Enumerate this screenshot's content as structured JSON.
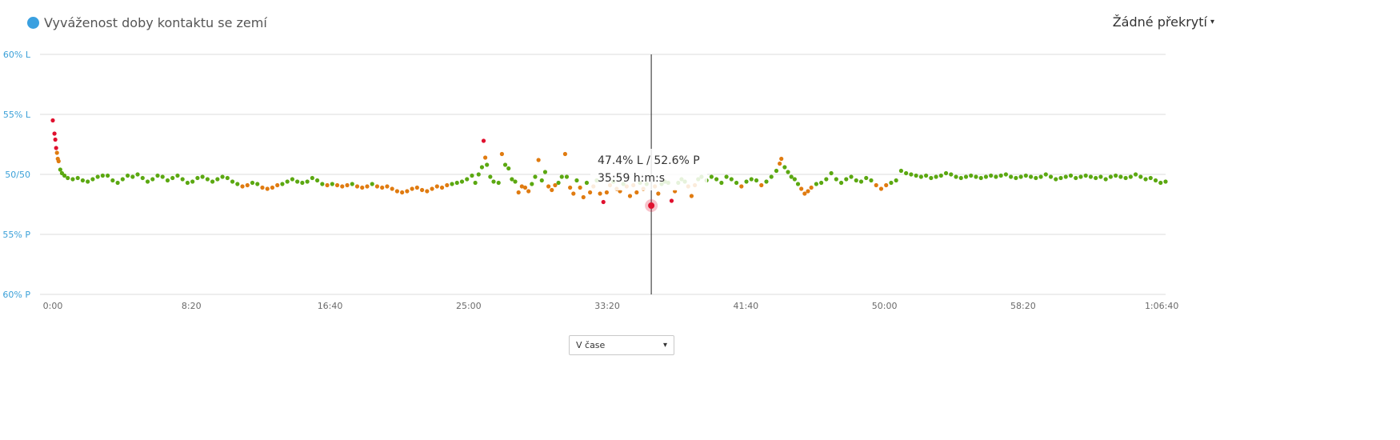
{
  "header": {
    "title": "Vyváženost doby kontaktu se zemí",
    "overlay_label": "Žádné překrytí",
    "overlay_caret": "▾"
  },
  "colors": {
    "title_dot": "#3aa0e0",
    "axis_label": "#3aa0d8",
    "good": "#5ba811",
    "warn": "#e07b10",
    "bad": "#e0102e",
    "gridline": "#dddddd",
    "cursor": "#222222"
  },
  "tooltip": {
    "balance": "47.4% L  /  52.6% P",
    "time": "35:59 h:m:s"
  },
  "footer": {
    "mode_select_value": "V čase",
    "mode_select_caret": "▾"
  },
  "chart_data": {
    "type": "scatter",
    "title": "Vyváženost doby kontaktu se zemí",
    "xlabel": "",
    "ylabel": "",
    "x_unit": "minutes",
    "xlim": [
      0,
      66.9
    ],
    "ylim": [
      40,
      60
    ],
    "y_ticks": [
      {
        "value": 60,
        "label": "60% L"
      },
      {
        "value": 55,
        "label": "55% L"
      },
      {
        "value": 50,
        "label": "50/50"
      },
      {
        "value": 45,
        "label": "55% P"
      },
      {
        "value": 40,
        "label": "60% P"
      }
    ],
    "x_ticks": [
      {
        "value": 0,
        "label": "0:00"
      },
      {
        "value": 8.333,
        "label": "8:20"
      },
      {
        "value": 16.667,
        "label": "16:40"
      },
      {
        "value": 25,
        "label": "25:00"
      },
      {
        "value": 33.333,
        "label": "33:20"
      },
      {
        "value": 41.667,
        "label": "41:40"
      },
      {
        "value": 50,
        "label": "50:00"
      },
      {
        "value": 58.333,
        "label": "58:20"
      },
      {
        "value": 66.667,
        "label": "1:06:40"
      }
    ],
    "grid": true,
    "cursor": {
      "x": 35.98,
      "y": 47.4
    },
    "color_bands": {
      "green": "49.2–50.8% L",
      "orange": "47.8–49.2% or 50.8–52.2% L",
      "red": "beyond"
    },
    "points": [
      [
        0.0,
        54.5
      ],
      [
        0.1,
        53.4
      ],
      [
        0.15,
        52.9
      ],
      [
        0.2,
        52.2
      ],
      [
        0.25,
        51.8
      ],
      [
        0.3,
        51.3
      ],
      [
        0.35,
        51.1
      ],
      [
        0.45,
        50.4
      ],
      [
        0.55,
        50.1
      ],
      [
        0.7,
        49.9
      ],
      [
        0.9,
        49.7
      ],
      [
        1.2,
        49.6
      ],
      [
        1.5,
        49.7
      ],
      [
        1.8,
        49.5
      ],
      [
        2.1,
        49.4
      ],
      [
        2.4,
        49.6
      ],
      [
        2.7,
        49.8
      ],
      [
        3.0,
        49.9
      ],
      [
        3.3,
        49.9
      ],
      [
        3.6,
        49.5
      ],
      [
        3.9,
        49.3
      ],
      [
        4.2,
        49.6
      ],
      [
        4.5,
        49.9
      ],
      [
        4.8,
        49.8
      ],
      [
        5.1,
        50.0
      ],
      [
        5.4,
        49.7
      ],
      [
        5.7,
        49.4
      ],
      [
        6.0,
        49.6
      ],
      [
        6.3,
        49.9
      ],
      [
        6.6,
        49.8
      ],
      [
        6.9,
        49.5
      ],
      [
        7.2,
        49.7
      ],
      [
        7.5,
        49.9
      ],
      [
        7.8,
        49.6
      ],
      [
        8.1,
        49.3
      ],
      [
        8.4,
        49.4
      ],
      [
        8.7,
        49.7
      ],
      [
        9.0,
        49.8
      ],
      [
        9.3,
        49.6
      ],
      [
        9.6,
        49.4
      ],
      [
        9.9,
        49.6
      ],
      [
        10.2,
        49.8
      ],
      [
        10.5,
        49.7
      ],
      [
        10.8,
        49.4
      ],
      [
        11.1,
        49.2
      ],
      [
        11.4,
        49.0
      ],
      [
        11.7,
        49.1
      ],
      [
        12.0,
        49.3
      ],
      [
        12.3,
        49.2
      ],
      [
        12.6,
        48.9
      ],
      [
        12.9,
        48.8
      ],
      [
        13.2,
        48.9
      ],
      [
        13.5,
        49.1
      ],
      [
        13.8,
        49.2
      ],
      [
        14.1,
        49.4
      ],
      [
        14.4,
        49.6
      ],
      [
        14.7,
        49.4
      ],
      [
        15.0,
        49.3
      ],
      [
        15.3,
        49.4
      ],
      [
        15.6,
        49.7
      ],
      [
        15.9,
        49.5
      ],
      [
        16.2,
        49.2
      ],
      [
        16.5,
        49.1
      ],
      [
        16.8,
        49.2
      ],
      [
        17.1,
        49.1
      ],
      [
        17.4,
        49.0
      ],
      [
        17.7,
        49.1
      ],
      [
        18.0,
        49.2
      ],
      [
        18.3,
        49.0
      ],
      [
        18.6,
        48.9
      ],
      [
        18.9,
        49.0
      ],
      [
        19.2,
        49.2
      ],
      [
        19.5,
        49.0
      ],
      [
        19.8,
        48.9
      ],
      [
        20.1,
        49.0
      ],
      [
        20.4,
        48.8
      ],
      [
        20.7,
        48.6
      ],
      [
        21.0,
        48.5
      ],
      [
        21.3,
        48.6
      ],
      [
        21.6,
        48.8
      ],
      [
        21.9,
        48.9
      ],
      [
        22.2,
        48.7
      ],
      [
        22.5,
        48.6
      ],
      [
        22.8,
        48.8
      ],
      [
        23.1,
        49.0
      ],
      [
        23.4,
        48.9
      ],
      [
        23.7,
        49.1
      ],
      [
        24.0,
        49.2
      ],
      [
        24.3,
        49.3
      ],
      [
        24.6,
        49.4
      ],
      [
        24.9,
        49.6
      ],
      [
        25.2,
        49.9
      ],
      [
        25.4,
        49.3
      ],
      [
        25.6,
        50.0
      ],
      [
        25.8,
        50.6
      ],
      [
        25.9,
        52.8
      ],
      [
        26.0,
        51.4
      ],
      [
        26.1,
        50.8
      ],
      [
        26.3,
        49.8
      ],
      [
        26.5,
        49.4
      ],
      [
        26.8,
        49.3
      ],
      [
        27.0,
        51.7
      ],
      [
        27.2,
        50.8
      ],
      [
        27.4,
        50.5
      ],
      [
        27.6,
        49.6
      ],
      [
        27.8,
        49.4
      ],
      [
        28.0,
        48.5
      ],
      [
        28.2,
        49.0
      ],
      [
        28.4,
        48.9
      ],
      [
        28.6,
        48.6
      ],
      [
        28.8,
        49.2
      ],
      [
        29.0,
        49.8
      ],
      [
        29.2,
        51.2
      ],
      [
        29.4,
        49.5
      ],
      [
        29.6,
        50.2
      ],
      [
        29.8,
        49.0
      ],
      [
        30.0,
        48.7
      ],
      [
        30.2,
        49.1
      ],
      [
        30.4,
        49.3
      ],
      [
        30.6,
        49.8
      ],
      [
        30.8,
        51.7
      ],
      [
        30.9,
        49.8
      ],
      [
        31.1,
        48.9
      ],
      [
        31.3,
        48.4
      ],
      [
        31.5,
        49.5
      ],
      [
        31.7,
        48.9
      ],
      [
        31.9,
        48.1
      ],
      [
        32.1,
        49.3
      ],
      [
        32.3,
        48.5
      ],
      [
        32.5,
        49.0
      ],
      [
        32.7,
        49.5
      ],
      [
        32.9,
        48.4
      ],
      [
        33.1,
        47.7
      ],
      [
        33.3,
        48.5
      ],
      [
        33.5,
        49.1
      ],
      [
        33.7,
        49.4
      ],
      [
        33.9,
        48.8
      ],
      [
        34.1,
        48.6
      ],
      [
        34.3,
        49.2
      ],
      [
        34.5,
        49.0
      ],
      [
        34.7,
        48.2
      ],
      [
        34.9,
        49.1
      ],
      [
        35.1,
        48.5
      ],
      [
        35.3,
        49.3
      ],
      [
        35.5,
        48.8
      ],
      [
        35.7,
        49.2
      ],
      [
        35.98,
        47.4
      ],
      [
        36.2,
        49.0
      ],
      [
        36.4,
        48.4
      ],
      [
        36.6,
        49.2
      ],
      [
        36.8,
        49.4
      ],
      [
        37.0,
        49.3
      ],
      [
        37.2,
        47.8
      ],
      [
        37.4,
        48.6
      ],
      [
        37.6,
        49.3
      ],
      [
        37.8,
        49.6
      ],
      [
        38.0,
        49.4
      ],
      [
        38.2,
        49.0
      ],
      [
        38.4,
        48.2
      ],
      [
        38.6,
        49.1
      ],
      [
        38.8,
        49.6
      ],
      [
        39.0,
        49.8
      ],
      [
        39.3,
        49.5
      ],
      [
        39.6,
        49.8
      ],
      [
        39.9,
        49.6
      ],
      [
        40.2,
        49.3
      ],
      [
        40.5,
        49.8
      ],
      [
        40.8,
        49.6
      ],
      [
        41.1,
        49.3
      ],
      [
        41.4,
        49.0
      ],
      [
        41.7,
        49.4
      ],
      [
        42.0,
        49.6
      ],
      [
        42.3,
        49.5
      ],
      [
        42.6,
        49.1
      ],
      [
        42.9,
        49.4
      ],
      [
        43.2,
        49.8
      ],
      [
        43.5,
        50.3
      ],
      [
        43.7,
        50.9
      ],
      [
        43.8,
        51.3
      ],
      [
        44.0,
        50.6
      ],
      [
        44.2,
        50.2
      ],
      [
        44.4,
        49.8
      ],
      [
        44.6,
        49.6
      ],
      [
        44.8,
        49.2
      ],
      [
        45.0,
        48.8
      ],
      [
        45.2,
        48.4
      ],
      [
        45.4,
        48.6
      ],
      [
        45.6,
        48.9
      ],
      [
        45.9,
        49.2
      ],
      [
        46.2,
        49.3
      ],
      [
        46.5,
        49.6
      ],
      [
        46.8,
        50.1
      ],
      [
        47.1,
        49.6
      ],
      [
        47.4,
        49.3
      ],
      [
        47.7,
        49.6
      ],
      [
        48.0,
        49.8
      ],
      [
        48.3,
        49.5
      ],
      [
        48.6,
        49.4
      ],
      [
        48.9,
        49.7
      ],
      [
        49.2,
        49.5
      ],
      [
        49.5,
        49.1
      ],
      [
        49.8,
        48.8
      ],
      [
        50.1,
        49.1
      ],
      [
        50.4,
        49.3
      ],
      [
        50.7,
        49.5
      ],
      [
        51.0,
        50.3
      ],
      [
        51.3,
        50.1
      ],
      [
        51.6,
        50.0
      ],
      [
        51.9,
        49.9
      ],
      [
        52.2,
        49.8
      ],
      [
        52.5,
        49.9
      ],
      [
        52.8,
        49.7
      ],
      [
        53.1,
        49.8
      ],
      [
        53.4,
        49.9
      ],
      [
        53.7,
        50.1
      ],
      [
        54.0,
        50.0
      ],
      [
        54.3,
        49.8
      ],
      [
        54.6,
        49.7
      ],
      [
        54.9,
        49.8
      ],
      [
        55.2,
        49.9
      ],
      [
        55.5,
        49.8
      ],
      [
        55.8,
        49.7
      ],
      [
        56.1,
        49.8
      ],
      [
        56.4,
        49.9
      ],
      [
        56.7,
        49.8
      ],
      [
        57.0,
        49.9
      ],
      [
        57.3,
        50.0
      ],
      [
        57.6,
        49.8
      ],
      [
        57.9,
        49.7
      ],
      [
        58.2,
        49.8
      ],
      [
        58.5,
        49.9
      ],
      [
        58.8,
        49.8
      ],
      [
        59.1,
        49.7
      ],
      [
        59.4,
        49.8
      ],
      [
        59.7,
        50.0
      ],
      [
        60.0,
        49.8
      ],
      [
        60.3,
        49.6
      ],
      [
        60.6,
        49.7
      ],
      [
        60.9,
        49.8
      ],
      [
        61.2,
        49.9
      ],
      [
        61.5,
        49.7
      ],
      [
        61.8,
        49.8
      ],
      [
        62.1,
        49.9
      ],
      [
        62.4,
        49.8
      ],
      [
        62.7,
        49.7
      ],
      [
        63.0,
        49.8
      ],
      [
        63.3,
        49.6
      ],
      [
        63.6,
        49.8
      ],
      [
        63.9,
        49.9
      ],
      [
        64.2,
        49.8
      ],
      [
        64.5,
        49.7
      ],
      [
        64.8,
        49.8
      ],
      [
        65.1,
        50.0
      ],
      [
        65.4,
        49.8
      ],
      [
        65.7,
        49.6
      ],
      [
        66.0,
        49.7
      ],
      [
        66.3,
        49.5
      ],
      [
        66.6,
        49.3
      ],
      [
        66.9,
        49.4
      ]
    ]
  }
}
